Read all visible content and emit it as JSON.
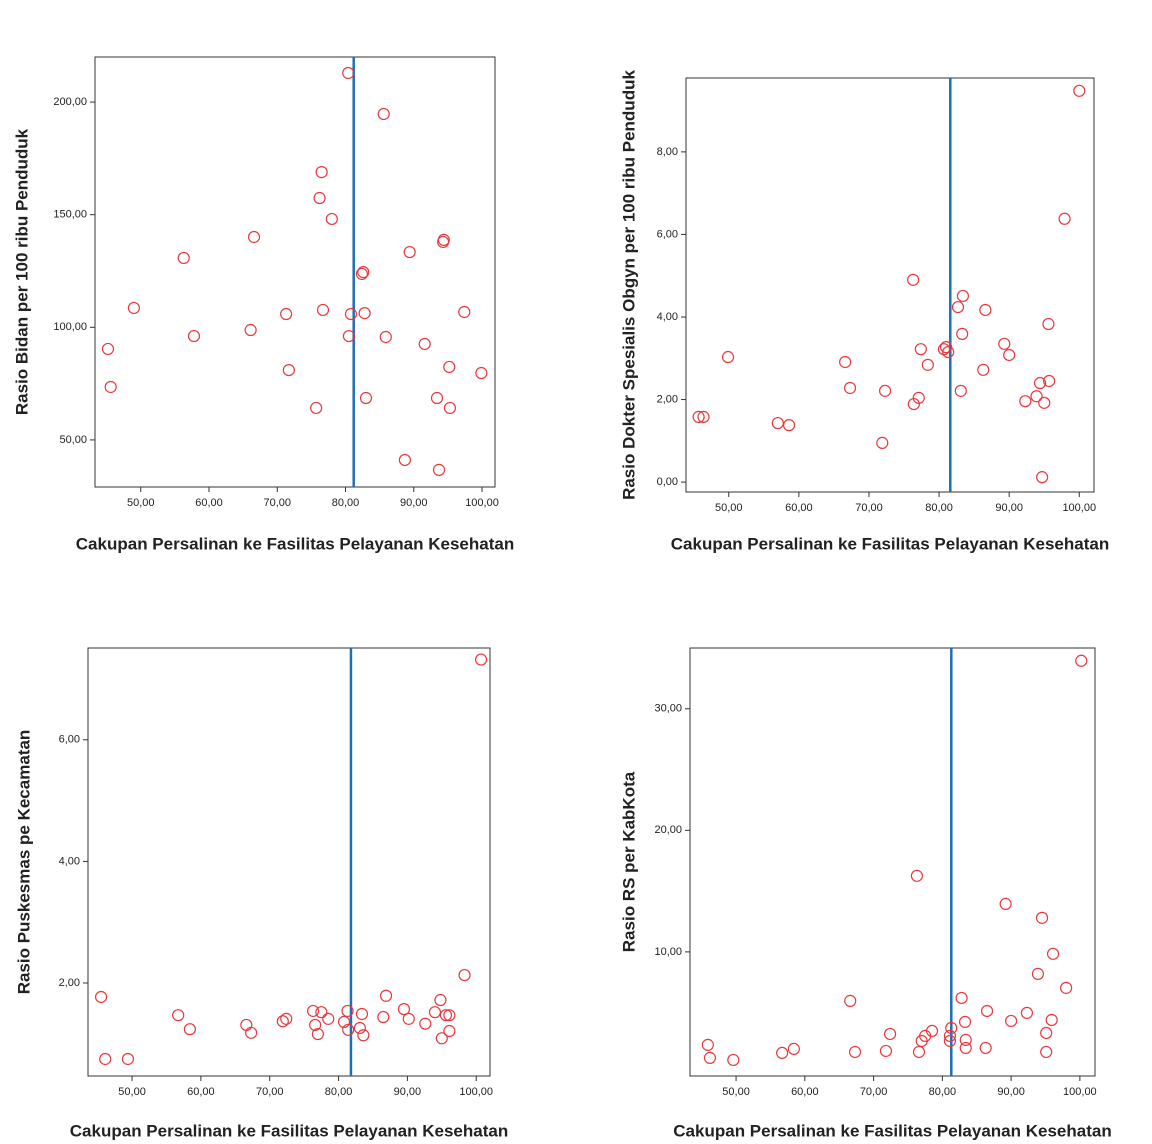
{
  "chart_data": [
    {
      "type": "scatter",
      "x_label": "Cakupan Persalinan ke Fasilitas Pelayanan Kesehatan",
      "y_label": "Rasio Bidan per 100 ribu Penduduk",
      "color": "#e8383d",
      "reference_x": 81.2,
      "reference_color": "#1f6fb5",
      "xlim": [
        43.3,
        101.9
      ],
      "ylim": [
        29.1,
        220
      ],
      "xticks": [
        {
          "value": 50,
          "label": "50,00"
        },
        {
          "value": 60,
          "label": "60,00"
        },
        {
          "value": 70,
          "label": "70,00"
        },
        {
          "value": 80,
          "label": "80,00"
        },
        {
          "value": 90,
          "label": "90,00"
        },
        {
          "value": 100,
          "label": "100,00"
        }
      ],
      "yticks": [
        {
          "value": 50,
          "label": "50,00"
        },
        {
          "value": 100,
          "label": "100,00"
        },
        {
          "value": 150,
          "label": "150,00"
        },
        {
          "value": 200,
          "label": "200,00"
        }
      ],
      "x": [
        45.2,
        45.6,
        49.0,
        56.3,
        57.8,
        66.6,
        66.1,
        71.3,
        71.7,
        75.7,
        76.2,
        76.5,
        76.7,
        78.0,
        80.4,
        80.5,
        80.8,
        82.4,
        82.6,
        82.8,
        83.0,
        85.6,
        85.9,
        88.7,
        89.4,
        91.6,
        93.4,
        93.7,
        94.3,
        94.4,
        95.2,
        95.3,
        97.4,
        99.9
      ],
      "values": [
        90.4,
        73.5,
        108.6,
        130.8,
        96.1,
        140.1,
        98.8,
        105.9,
        81.0,
        64.2,
        157.4,
        168.9,
        107.7,
        148.1,
        212.9,
        96.1,
        105.9,
        123.7,
        124.5,
        106.3,
        68.6,
        194.7,
        95.7,
        41.1,
        133.4,
        92.6,
        68.6,
        36.7,
        137.9,
        138.8,
        82.4,
        64.2,
        106.8,
        79.7
      ]
    },
    {
      "type": "scatter",
      "x_label": "Cakupan Persalinan ke Fasilitas Pelayanan Kesehatan",
      "y_label": "Rasio Dokter Spesialis Obgyn per 100 ribu Penduduk",
      "color": "#e8383d",
      "reference_x": 81.6,
      "reference_color": "#1f6fb5",
      "xlim": [
        43.9,
        102.1
      ],
      "ylim": [
        -0.24,
        9.79
      ],
      "xticks": [
        {
          "value": 50,
          "label": "50,00"
        },
        {
          "value": 60,
          "label": "60,00"
        },
        {
          "value": 70,
          "label": "70,00"
        },
        {
          "value": 80,
          "label": "80,00"
        },
        {
          "value": 90,
          "label": "90,00"
        },
        {
          "value": 100,
          "label": "100,00"
        }
      ],
      "yticks": [
        {
          "value": 0,
          "label": "0,00"
        },
        {
          "value": 2,
          "label": "2,00"
        },
        {
          "value": 4,
          "label": "4,00"
        },
        {
          "value": 6,
          "label": "6,00"
        },
        {
          "value": 8,
          "label": "8,00"
        }
      ],
      "x": [
        45.7,
        46.4,
        49.9,
        57.0,
        58.6,
        66.6,
        67.3,
        71.9,
        72.3,
        76.3,
        76.4,
        77.1,
        77.4,
        78.4,
        80.7,
        81.3,
        81.0,
        82.7,
        83.4,
        83.3,
        83.1,
        86.6,
        86.3,
        89.3,
        90.0,
        92.3,
        93.9,
        94.4,
        95.0,
        94.7,
        95.7,
        95.6,
        97.9,
        100.0
      ],
      "values": [
        1.58,
        1.58,
        3.03,
        1.43,
        1.38,
        2.91,
        2.28,
        0.95,
        2.21,
        4.9,
        1.89,
        2.04,
        3.22,
        2.84,
        3.22,
        3.15,
        3.27,
        4.24,
        4.51,
        3.59,
        2.21,
        4.17,
        2.72,
        3.35,
        3.08,
        1.96,
        2.08,
        2.4,
        1.92,
        0.12,
        2.45,
        3.83,
        6.38,
        9.48
      ]
    },
    {
      "type": "scatter",
      "x_label": "Cakupan Persalinan ke Fasilitas Pelayanan Kesehatan",
      "y_label": "Rasio Puskesmas pe Kecamatan",
      "color": "#e8383d",
      "reference_x": 81.8,
      "reference_color": "#1f6fb5",
      "xlim": [
        43.6,
        102.0
      ],
      "ylim": [
        0.47,
        7.51
      ],
      "xticks": [
        {
          "value": 50,
          "label": "50,00"
        },
        {
          "value": 60,
          "label": "60,00"
        },
        {
          "value": 70,
          "label": "70,00"
        },
        {
          "value": 80,
          "label": "80,00"
        },
        {
          "value": 90,
          "label": "90,00"
        },
        {
          "value": 100,
          "label": "100,00"
        }
      ],
      "yticks": [
        {
          "value": 2,
          "label": "2,00"
        },
        {
          "value": 4,
          "label": "4,00"
        },
        {
          "value": 6,
          "label": "6,00"
        }
      ],
      "x": [
        45.5,
        46.1,
        49.4,
        56.7,
        58.4,
        66.6,
        67.3,
        71.9,
        72.4,
        76.3,
        76.6,
        77.0,
        77.5,
        78.5,
        80.8,
        81.3,
        81.4,
        83.1,
        83.4,
        83.6,
        86.9,
        86.5,
        89.5,
        90.2,
        92.6,
        94.0,
        94.8,
        95.0,
        95.6,
        96.1,
        96.1,
        98.3,
        100.7
      ],
      "values": [
        1.77,
        0.75,
        0.75,
        1.47,
        1.24,
        1.31,
        1.18,
        1.37,
        1.41,
        1.54,
        1.31,
        1.16,
        1.52,
        1.41,
        1.36,
        1.54,
        1.23,
        1.26,
        1.49,
        1.14,
        1.79,
        1.44,
        1.57,
        1.41,
        1.33,
        1.52,
        1.72,
        1.09,
        1.47,
        1.47,
        1.21,
        2.13,
        7.32
      ]
    },
    {
      "type": "scatter",
      "x_label": "Cakupan Persalinan ke Fasilitas Pelayanan Kesehatan",
      "y_label": "Rasio RS per KabKota",
      "color": "#e8383d",
      "reference_x": 81.3,
      "reference_color": "#1f6fb5",
      "xlim": [
        43.3,
        102.2
      ],
      "ylim": [
        -0.21,
        35.0
      ],
      "xticks": [
        {
          "value": 50,
          "label": "50,00"
        },
        {
          "value": 60,
          "label": "60,00"
        },
        {
          "value": 70,
          "label": "70,00"
        },
        {
          "value": 80,
          "label": "80,00"
        },
        {
          "value": 90,
          "label": "90,00"
        },
        {
          "value": 100,
          "label": "100,00"
        }
      ],
      "yticks": [
        {
          "value": 10,
          "label": "10,00"
        },
        {
          "value": 20,
          "label": "20,00"
        },
        {
          "value": 30,
          "label": "30,00"
        }
      ],
      "x": [
        45.9,
        46.2,
        49.6,
        56.7,
        58.4,
        66.6,
        67.3,
        71.8,
        72.4,
        76.3,
        76.6,
        77.0,
        77.5,
        78.5,
        81.1,
        81.3,
        81.1,
        82.8,
        83.3,
        83.4,
        83.4,
        86.5,
        86.3,
        89.2,
        90.0,
        92.3,
        93.9,
        94.5,
        95.1,
        95.1,
        95.9,
        96.1,
        98.0,
        100.2
      ],
      "values": [
        2.35,
        1.28,
        1.11,
        1.69,
        2.02,
        5.97,
        1.77,
        1.85,
        3.25,
        16.26,
        1.77,
        2.67,
        3.09,
        3.5,
        3.09,
        3.74,
        2.67,
        6.21,
        4.24,
        2.76,
        2.1,
        5.14,
        2.1,
        13.95,
        4.32,
        4.98,
        8.19,
        12.8,
        1.77,
        3.33,
        4.4,
        9.84,
        7.04,
        33.95
      ]
    }
  ]
}
